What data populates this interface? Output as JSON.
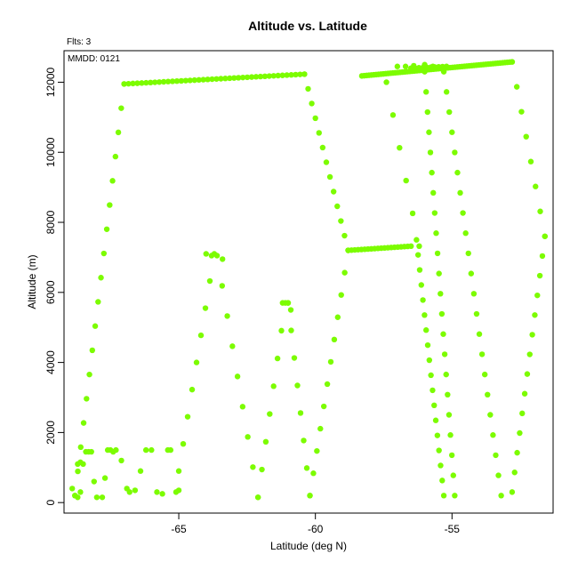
{
  "chart_data": {
    "type": "scatter",
    "title": "Altitude vs. Latitude",
    "xlabel": "Latitude (deg N)",
    "ylabel": "Altitude (m)",
    "xlim": [
      -69.2,
      -51.3
    ],
    "ylim": [
      -300,
      12900
    ],
    "xticks": [
      -65,
      -60,
      -55
    ],
    "xtick_labels": [
      "-65",
      "-60",
      "-55"
    ],
    "yticks": [
      0,
      2000,
      4000,
      6000,
      8000,
      10000,
      12000
    ],
    "ytick_labels": [
      "0",
      "2000",
      "4000",
      "6000",
      "8000",
      "10000",
      "12000"
    ],
    "grid": false,
    "point_color": "#7cfc00",
    "annotations": [
      "Flts: 3",
      "MMDD: 0121"
    ],
    "segments": [
      {
        "x0": -67.0,
        "x1": -60.4,
        "y0": 11950,
        "y1": 12230,
        "n": 42
      },
      {
        "x0": -58.3,
        "x1": -52.8,
        "y0": 12180,
        "y1": 12580,
        "n": 64
      },
      {
        "x0": -56.5,
        "x1": -55.2,
        "y0": 12400,
        "y1": 12450,
        "n": 10
      },
      {
        "x0": -58.8,
        "x1": -56.5,
        "y0": 7200,
        "y1": 7320,
        "n": 20
      },
      {
        "x0": -68.8,
        "x1": -67.0,
        "y0": 200,
        "y1": 11950,
        "n": 18
      },
      {
        "x0": -60.4,
        "x1": -58.8,
        "y0": 12230,
        "y1": 7200,
        "n": 13
      },
      {
        "x0": -58.8,
        "x1": -60.2,
        "y0": 7200,
        "y1": 200,
        "n": 12
      },
      {
        "x0": -57.4,
        "x1": -56.2,
        "y0": 12000,
        "y1": 7320,
        "n": 6
      },
      {
        "x0": -56.3,
        "x1": -55.3,
        "y0": 7500,
        "y1": 200,
        "n": 18
      },
      {
        "x0": -56.0,
        "x1": -54.9,
        "y0": 12300,
        "y1": 200,
        "n": 22
      },
      {
        "x0": -55.3,
        "x1": -53.2,
        "y0": 12300,
        "y1": 200,
        "n": 22
      },
      {
        "x0": -52.8,
        "x1": -51.6,
        "y0": 12580,
        "y1": 7600,
        "n": 8
      },
      {
        "x0": -51.6,
        "x1": -52.8,
        "y0": 7600,
        "y1": 300,
        "n": 14
      },
      {
        "x0": -65.0,
        "x1": -63.7,
        "y0": 900,
        "y1": 7100,
        "n": 9
      },
      {
        "x0": -63.6,
        "x1": -62.1,
        "y0": 7050,
        "y1": 150,
        "n": 9
      },
      {
        "x0": -62.1,
        "x1": -61.1,
        "y0": 150,
        "y1": 5700,
        "n": 8
      },
      {
        "x0": -61.0,
        "x1": -60.2,
        "y0": 5700,
        "y1": 200,
        "n": 8
      }
    ],
    "points": [
      [
        -68.9,
        400
      ],
      [
        -68.8,
        200
      ],
      [
        -68.7,
        150
      ],
      [
        -68.6,
        300
      ],
      [
        -68.5,
        1100
      ],
      [
        -68.3,
        1450
      ],
      [
        -68.1,
        600
      ],
      [
        -68.0,
        150
      ],
      [
        -67.8,
        150
      ],
      [
        -67.7,
        700
      ],
      [
        -67.5,
        1500
      ],
      [
        -67.3,
        1500
      ],
      [
        -67.1,
        1200
      ],
      [
        -66.9,
        400
      ],
      [
        -66.8,
        300
      ],
      [
        -66.6,
        350
      ],
      [
        -66.4,
        900
      ],
      [
        -66.2,
        1500
      ],
      [
        -66.0,
        1500
      ],
      [
        -65.8,
        300
      ],
      [
        -65.6,
        250
      ],
      [
        -65.4,
        1500
      ],
      [
        -65.3,
        1500
      ],
      [
        -65.1,
        300
      ],
      [
        -65.0,
        350
      ],
      [
        -68.7,
        1100
      ],
      [
        -68.6,
        1150
      ],
      [
        -68.4,
        1450
      ],
      [
        -68.2,
        1450
      ],
      [
        -67.6,
        1500
      ],
      [
        -67.4,
        1450
      ],
      [
        -64.0,
        7100
      ],
      [
        -63.8,
        7050
      ],
      [
        -63.4,
        6950
      ],
      [
        -61.2,
        5700
      ],
      [
        -61.0,
        5700
      ],
      [
        -60.9,
        5500
      ],
      [
        -57.0,
        12450
      ],
      [
        -56.7,
        12450
      ],
      [
        -56.4,
        12470
      ],
      [
        -56.0,
        12500
      ],
      [
        -55.7,
        12450
      ]
    ]
  }
}
